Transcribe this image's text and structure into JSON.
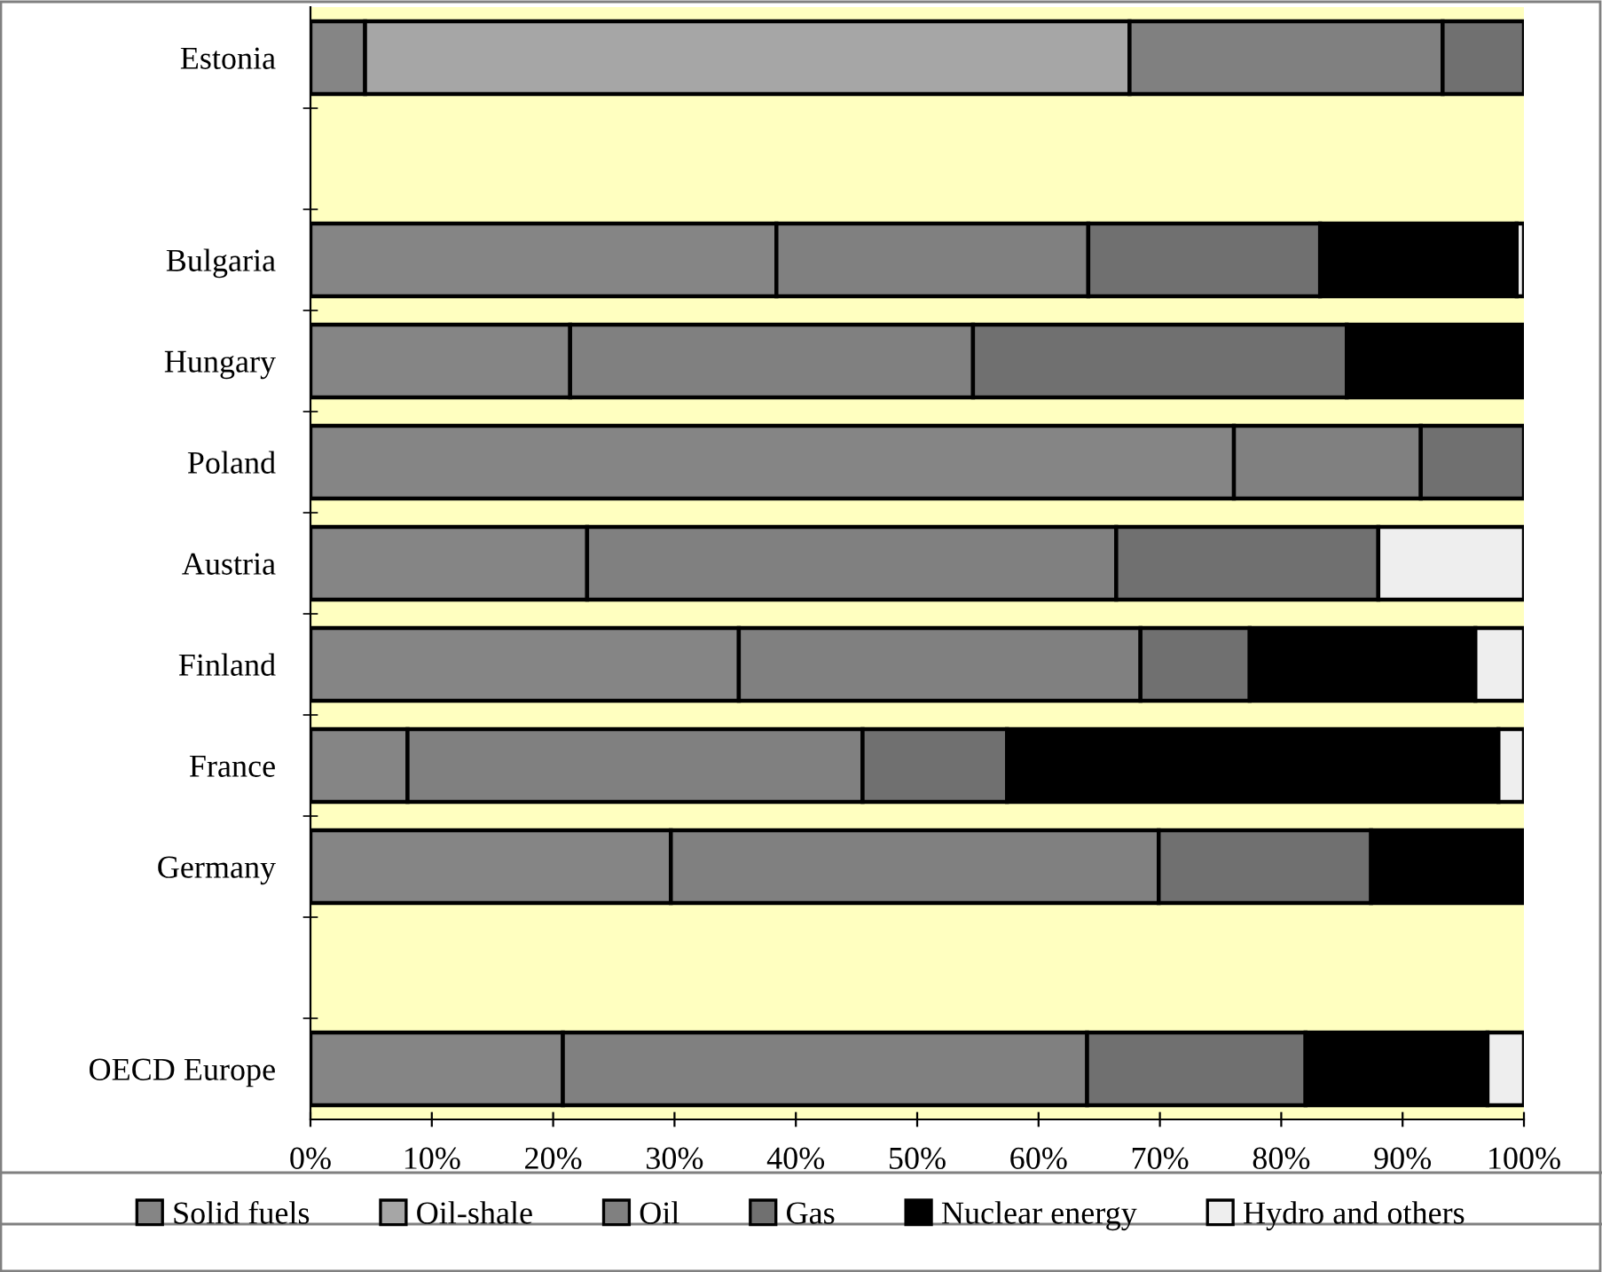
{
  "chart_data": {
    "type": "bar",
    "orientation": "horizontal",
    "stacked": true,
    "categories": [
      "Estonia",
      null,
      "Bulgaria",
      "Hungary",
      "Poland",
      "Austria",
      "Finland",
      "France",
      "Germany",
      null,
      "OECD Europe"
    ],
    "series": [
      {
        "name": "Solid fuels",
        "color": "#858585",
        "values": [
          4.5,
          null,
          38.4,
          21.4,
          76.1,
          22.8,
          35.3,
          8.0,
          29.7,
          null,
          20.8
        ]
      },
      {
        "name": "Oil-shale",
        "color": "#a6a6a6",
        "values": [
          63.0,
          null,
          0,
          0,
          0,
          0,
          0,
          0,
          0,
          null,
          0
        ]
      },
      {
        "name": "Oil",
        "color": "#808080",
        "values": [
          25.8,
          null,
          25.7,
          33.2,
          15.4,
          43.6,
          33.1,
          37.5,
          40.2,
          null,
          43.2
        ]
      },
      {
        "name": "Gas",
        "color": "#707070",
        "values": [
          6.7,
          null,
          19.1,
          30.8,
          8.5,
          21.6,
          9.0,
          11.9,
          17.5,
          null,
          18.0
        ]
      },
      {
        "name": "Nuclear energy",
        "color": "#000000",
        "values": [
          0,
          null,
          16.2,
          14.6,
          0,
          0,
          18.6,
          40.5,
          12.6,
          null,
          15.0
        ]
      },
      {
        "name": "Hydro and others",
        "color": "#eeeeee",
        "values": [
          0,
          null,
          0.6,
          0,
          0,
          12.0,
          4.0,
          2.1,
          null,
          null,
          3.0
        ]
      }
    ],
    "xlim": [
      0,
      100
    ],
    "xticks": [
      {
        "value": 0,
        "label": "0%"
      },
      {
        "value": 10,
        "label": "10%"
      },
      {
        "value": 20,
        "label": "20%"
      },
      {
        "value": 30,
        "label": "30%"
      },
      {
        "value": 40,
        "label": "40%"
      },
      {
        "value": 50,
        "label": "50%"
      },
      {
        "value": 60,
        "label": "60%"
      },
      {
        "value": 70,
        "label": "70%"
      },
      {
        "value": 80,
        "label": "80%"
      },
      {
        "value": 90,
        "label": "90%"
      },
      {
        "value": 100,
        "label": "100%"
      }
    ],
    "grid": false,
    "legend": "bottom"
  }
}
